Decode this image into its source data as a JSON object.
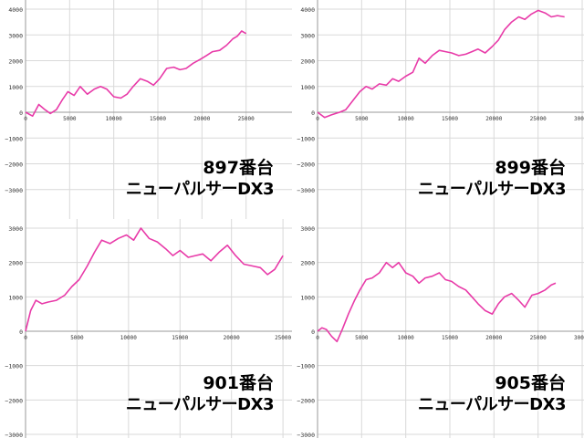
{
  "chart_data": [
    {
      "type": "line",
      "caption": {
        "machine": "897番台",
        "model": "ニューパルサーDX3"
      },
      "ylim": [
        -4000,
        4000
      ],
      "y_ticks": [
        "4000",
        "3000",
        "2000",
        "1000",
        "0",
        "−1000",
        "−2000",
        "−3000"
      ],
      "xlim": [
        0,
        30000
      ],
      "x_ticks": [
        "0",
        "5000",
        "10000",
        "15000",
        "20000",
        "25000"
      ],
      "line_color": "#e83aa8",
      "series": [
        {
          "x": [
            0,
            800,
            1500,
            2200,
            2800,
            3500,
            4200,
            4800,
            5500,
            6200,
            7000,
            7800,
            8500,
            9200,
            10000,
            10800,
            11500,
            12200,
            13000,
            13800,
            14500,
            15200,
            16000,
            16800,
            17500,
            18200,
            19000,
            19800,
            20500,
            21200,
            22000,
            22800,
            23500,
            24000,
            24500,
            25000
          ],
          "y": [
            0,
            -150,
            300,
            100,
            -50,
            100,
            500,
            800,
            650,
            1000,
            700,
            900,
            1000,
            900,
            600,
            550,
            700,
            1000,
            1300,
            1200,
            1050,
            1300,
            1700,
            1750,
            1650,
            1700,
            1900,
            2050,
            2200,
            2350,
            2400,
            2600,
            2850,
            2950,
            3150,
            3050
          ]
        }
      ]
    },
    {
      "type": "line",
      "caption": {
        "machine": "899番台",
        "model": "ニューパルサーDX3"
      },
      "ylim": [
        -4000,
        4000
      ],
      "y_ticks": [
        "4000",
        "3000",
        "2000",
        "1000",
        "0",
        "−1000",
        "−2000",
        "−3000"
      ],
      "xlim": [
        0,
        30000
      ],
      "x_ticks": [
        "0",
        "5000",
        "10000",
        "15000",
        "20000",
        "25000",
        "30000"
      ],
      "line_color": "#e83aa8",
      "series": [
        {
          "x": [
            0,
            800,
            1600,
            2500,
            3200,
            4000,
            4800,
            5500,
            6200,
            7000,
            7800,
            8500,
            9200,
            10000,
            10800,
            11500,
            12200,
            13000,
            13800,
            14500,
            15200,
            16000,
            16800,
            17500,
            18200,
            19000,
            19800,
            20500,
            21200,
            22000,
            22800,
            23500,
            24200,
            25000,
            25800,
            26500,
            27200,
            28000
          ],
          "y": [
            0,
            -200,
            -100,
            0,
            100,
            450,
            800,
            1000,
            900,
            1100,
            1050,
            1300,
            1200,
            1400,
            1550,
            2100,
            1900,
            2200,
            2400,
            2350,
            2300,
            2200,
            2250,
            2350,
            2450,
            2300,
            2550,
            2800,
            3200,
            3500,
            3700,
            3600,
            3800,
            3950,
            3850,
            3700,
            3750,
            3700
          ]
        }
      ]
    },
    {
      "type": "line",
      "caption": {
        "machine": "901番台",
        "model": "ニューパルサーDX3"
      },
      "ylim": [
        -3000,
        3000
      ],
      "y_ticks": [
        "3000",
        "2000",
        "1000",
        "0",
        "−1000",
        "−2000",
        "−3000"
      ],
      "xlim": [
        0,
        25000
      ],
      "x_ticks": [
        "0",
        "5000",
        "10000",
        "15000",
        "20000",
        "25000"
      ],
      "line_color": "#e83aa8",
      "series": [
        {
          "x": [
            0,
            500,
            1000,
            1600,
            2200,
            3000,
            3800,
            4500,
            5200,
            6000,
            6700,
            7400,
            8200,
            9000,
            9800,
            10500,
            11200,
            12000,
            12800,
            13600,
            14300,
            15000,
            15800,
            16500,
            17200,
            18000,
            18800,
            19600,
            20400,
            21200,
            22000,
            22800,
            23500,
            24200,
            25000
          ],
          "y": [
            0,
            600,
            900,
            800,
            850,
            900,
            1050,
            1300,
            1500,
            1900,
            2300,
            2650,
            2550,
            2700,
            2800,
            2650,
            3000,
            2700,
            2600,
            2400,
            2200,
            2350,
            2150,
            2200,
            2250,
            2050,
            2300,
            2500,
            2200,
            1950,
            1900,
            1850,
            1650,
            1800,
            2200
          ]
        }
      ]
    },
    {
      "type": "line",
      "caption": {
        "machine": "905番台",
        "model": "ニューパルサーDX3"
      },
      "ylim": [
        -3000,
        3000
      ],
      "y_ticks": [
        "3000",
        "2000",
        "1000",
        "0",
        "−1000",
        "−2000",
        "−3000"
      ],
      "xlim": [
        0,
        30000
      ],
      "x_ticks": [
        "0",
        "5000",
        "10000",
        "15000",
        "20000",
        "25000",
        "30000"
      ],
      "line_color": "#e83aa8",
      "series": [
        {
          "x": [
            0,
            500,
            1000,
            1600,
            2200,
            2800,
            3500,
            4200,
            4800,
            5500,
            6200,
            7000,
            7800,
            8500,
            9200,
            10000,
            10800,
            11500,
            12200,
            13000,
            13800,
            14500,
            15200,
            16000,
            16800,
            17500,
            18200,
            19000,
            19800,
            20500,
            21200,
            22000,
            22800,
            23500,
            24300,
            25000,
            25800,
            26500,
            27000
          ],
          "y": [
            0,
            100,
            50,
            -150,
            -300,
            50,
            500,
            900,
            1200,
            1500,
            1550,
            1700,
            2000,
            1850,
            2000,
            1700,
            1600,
            1400,
            1550,
            1600,
            1700,
            1500,
            1450,
            1300,
            1200,
            1000,
            800,
            600,
            500,
            800,
            1000,
            1100,
            900,
            700,
            1050,
            1100,
            1200,
            1350,
            1400
          ]
        }
      ]
    }
  ]
}
